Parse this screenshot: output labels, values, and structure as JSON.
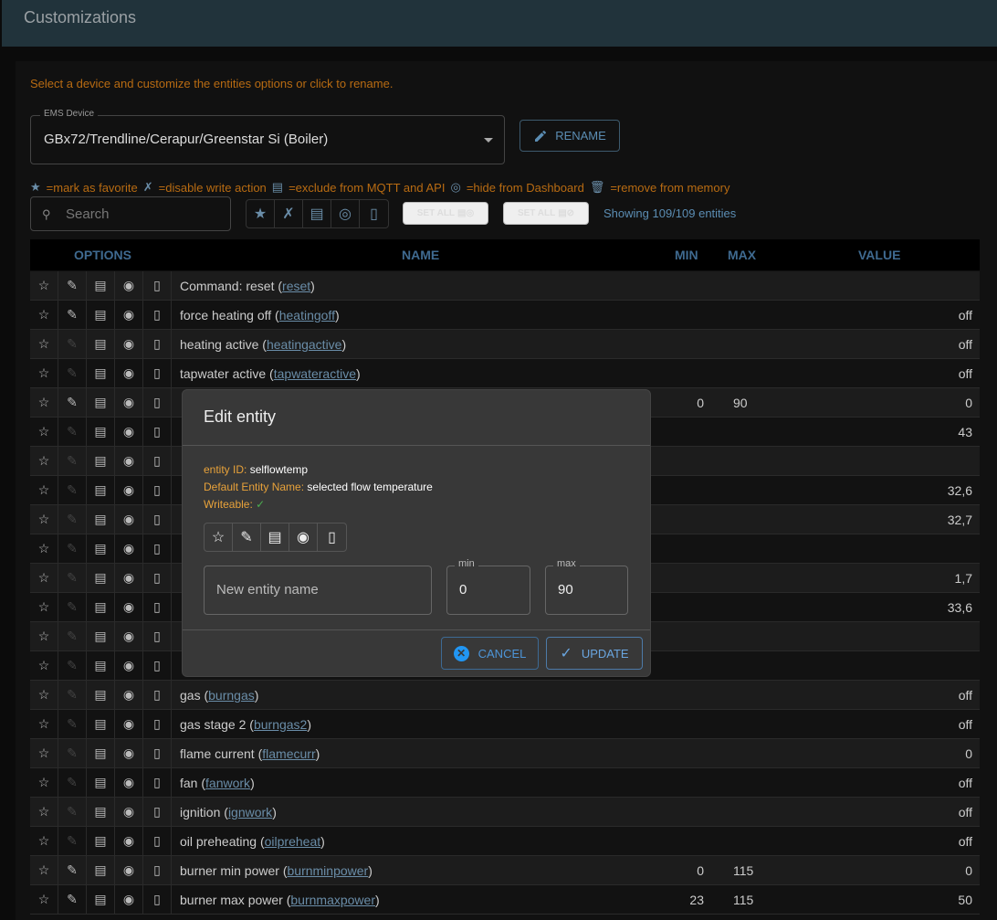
{
  "appbar": {
    "title": "Customizations"
  },
  "hint": "Select a device and customize the entities options or click to rename.",
  "device": {
    "label": "EMS Device",
    "value": "GBx72/Trendline/Cerapur/Greenstar Si (Boiler)"
  },
  "rename_label": "RENAME",
  "legend": {
    "favorite": "=mark as favorite",
    "readonly": "=disable write action",
    "exclude": "=exclude from MQTT and API",
    "hide": "=hide from Dashboard",
    "remove": "=remove from memory"
  },
  "search": {
    "placeholder": "Search"
  },
  "set_all_1": "SET ALL",
  "set_all_2": "SET ALL",
  "count": "Showing 109/109 entities",
  "table": {
    "headers": {
      "options": "OPTIONS",
      "name": "NAME",
      "min": "MIN",
      "max": "MAX",
      "value": "VALUE"
    },
    "rows": [
      {
        "name": "Command: reset",
        "id": "reset",
        "min": "",
        "max": "",
        "value": "",
        "write": true
      },
      {
        "name": "force heating off",
        "id": "heatingoff",
        "min": "",
        "max": "",
        "value": "off",
        "write": true
      },
      {
        "name": "heating active",
        "id": "heatingactive",
        "min": "",
        "max": "",
        "value": "off",
        "write": false
      },
      {
        "name": "tapwater active",
        "id": "tapwateractive",
        "min": "",
        "max": "",
        "value": "off",
        "write": false
      },
      {
        "name": "",
        "id": "",
        "min": "0",
        "max": "90",
        "value": "0",
        "write": true
      },
      {
        "name": "",
        "id": "",
        "min": "",
        "max": "",
        "value": "43",
        "write": false
      },
      {
        "name": "",
        "id": "",
        "min": "",
        "max": "",
        "value": "",
        "write": false
      },
      {
        "name": "",
        "id": "",
        "min": "",
        "max": "",
        "value": "32,6",
        "write": false
      },
      {
        "name": "",
        "id": "",
        "min": "",
        "max": "",
        "value": "32,7",
        "write": false
      },
      {
        "name": "",
        "id": "",
        "min": "",
        "max": "",
        "value": "",
        "write": false
      },
      {
        "name": "",
        "id": "",
        "min": "",
        "max": "",
        "value": "1,7",
        "write": false
      },
      {
        "name": "",
        "id": "",
        "min": "",
        "max": "",
        "value": "33,6",
        "write": false
      },
      {
        "name": "",
        "id": "",
        "min": "",
        "max": "",
        "value": "",
        "write": false
      },
      {
        "name": "",
        "id": "",
        "min": "",
        "max": "",
        "value": "",
        "write": false
      },
      {
        "name": "gas",
        "id": "burngas",
        "min": "",
        "max": "",
        "value": "off",
        "write": false
      },
      {
        "name": "gas stage 2",
        "id": "burngas2",
        "min": "",
        "max": "",
        "value": "off",
        "write": false
      },
      {
        "name": "flame current",
        "id": "flamecurr",
        "min": "",
        "max": "",
        "value": "0",
        "write": false
      },
      {
        "name": "fan",
        "id": "fanwork",
        "min": "",
        "max": "",
        "value": "off",
        "write": false
      },
      {
        "name": "ignition",
        "id": "ignwork",
        "min": "",
        "max": "",
        "value": "off",
        "write": false
      },
      {
        "name": "oil preheating",
        "id": "oilpreheat",
        "min": "",
        "max": "",
        "value": "off",
        "write": false
      },
      {
        "name": "burner min power",
        "id": "burnminpower",
        "min": "0",
        "max": "115",
        "value": "0",
        "write": true
      },
      {
        "name": "burner max power",
        "id": "burnmaxpower",
        "min": "23",
        "max": "115",
        "value": "50",
        "write": true
      }
    ]
  },
  "dialog": {
    "title": "Edit entity",
    "entity_id_label": "entity ID:",
    "entity_id": "selflowtemp",
    "default_name_label": "Default Entity Name:",
    "default_name": "selected flow temperature",
    "writeable_label": "Writeable:",
    "writeable": "✓",
    "name_placeholder": "New entity name",
    "min_label": "min",
    "min": "0",
    "max_label": "max",
    "max": "90",
    "cancel": "CANCEL",
    "update": "UPDATE"
  },
  "colors": {
    "accent": "#5b8db3",
    "warning": "#b86b12",
    "appbar": "#21333b"
  }
}
